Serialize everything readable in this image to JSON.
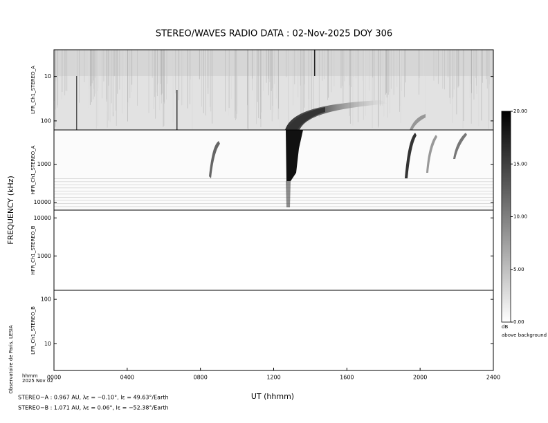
{
  "chart_data": {
    "type": "spectrogram",
    "title": "STEREO/WAVES  RADIO  DATA : 02-Nov-2025  DOY 306",
    "xlabel": "UT (hhmm)",
    "ylabel": "FREQUENCY (kHz)",
    "xlim": [
      0,
      2400
    ],
    "xticks": [
      {
        "value": 0,
        "label": "0000"
      },
      {
        "value": 400,
        "label": "0400"
      },
      {
        "value": 800,
        "label": "0800"
      },
      {
        "value": 1200,
        "label": "1200"
      },
      {
        "value": 1600,
        "label": "1600"
      },
      {
        "value": 2000,
        "label": "2000"
      },
      {
        "value": 2400,
        "label": "2400"
      }
    ],
    "x_unit_label": "hhmm",
    "date_label": "2025 Nov 02",
    "log_scale": true,
    "panels": [
      {
        "name": "LFR_Ch1_STEREO_A",
        "ylim": [
          160,
          2.5
        ],
        "yticks": [
          10,
          100
        ]
      },
      {
        "name": "HFR_Ch1_STEREO_A",
        "ylim": [
          16025,
          125
        ],
        "yticks": [
          1000,
          10000
        ]
      },
      {
        "name": "HFR_Ch1_STEREO_B",
        "ylim": [
          125,
          16025
        ],
        "yticks": [
          1000,
          10000
        ]
      },
      {
        "name": "LFR_Ch1_STEREO_B",
        "ylim": [
          2.5,
          160
        ],
        "yticks": [
          10,
          100
        ]
      }
    ],
    "colorbar": {
      "ylim": [
        0,
        20
      ],
      "yticks": [
        {
          "value": 0,
          "label": "0.00"
        },
        {
          "value": 5,
          "label": "5.00"
        },
        {
          "value": 10,
          "label": "10.00"
        },
        {
          "value": 15,
          "label": "15.00"
        },
        {
          "value": 20,
          "label": "20.00"
        }
      ],
      "unit": "dB",
      "label": "above background"
    },
    "credit": "Observatoire de Paris, LESIA",
    "footnotes": [
      "STEREO−A : 0.967 AU, λε = −0.10°, lε = 49.63°/Earth",
      "STEREO−B : 1.071 AU, λε = 0.06°, lε = −52.38°/Earth"
    ]
  }
}
